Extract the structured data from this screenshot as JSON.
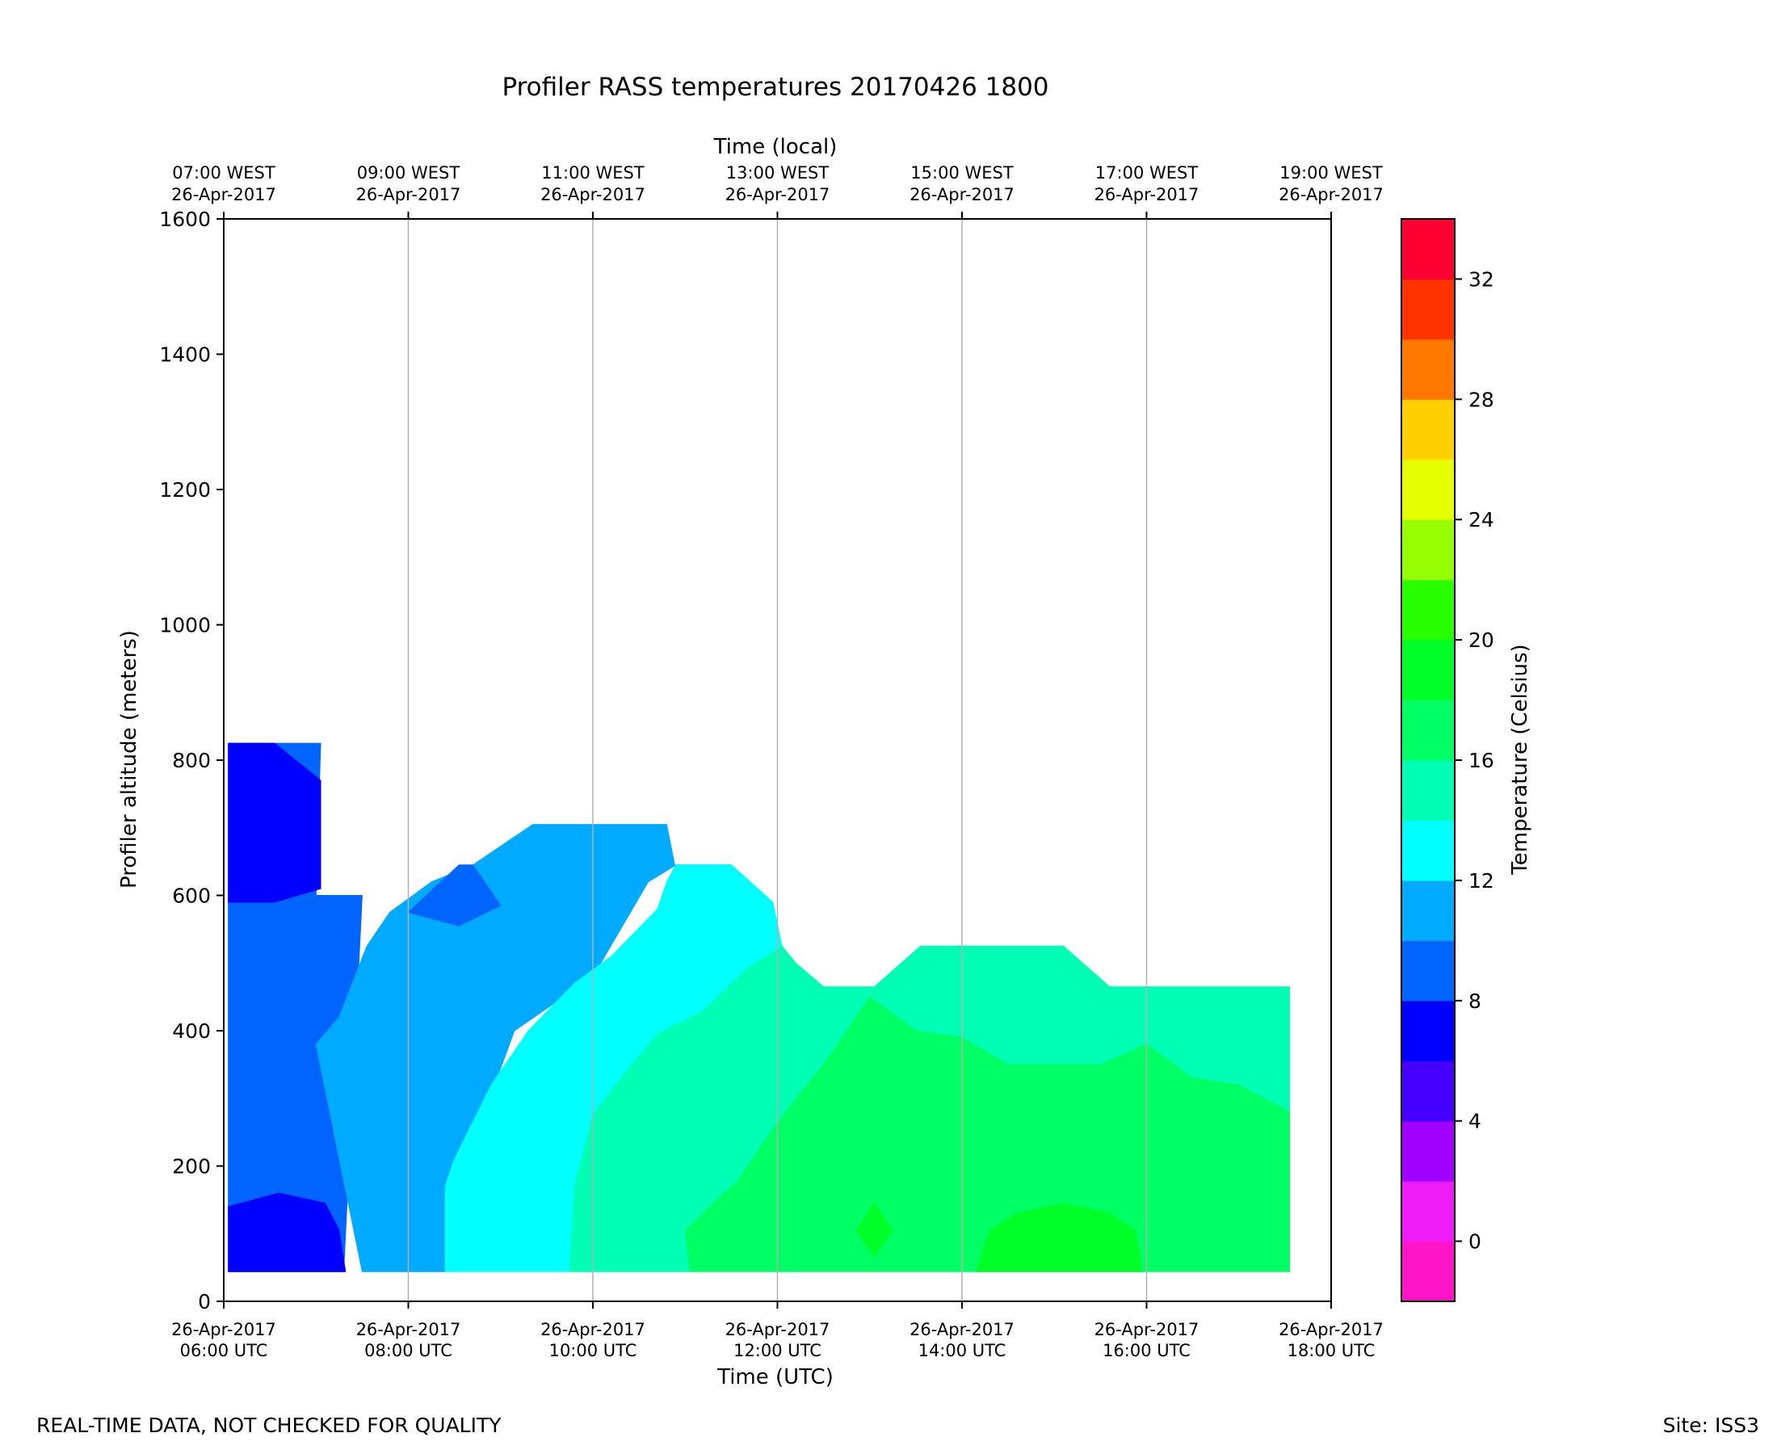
{
  "chart_data": {
    "type": "contourf",
    "title": "Profiler RASS temperatures 20170426 1800",
    "xlabel": "Time (UTC)",
    "xlabel_top": "Time (local)",
    "ylabel": "Profiler altitude (meters)",
    "x_units": "hours UTC",
    "xlim": [
      6,
      18
    ],
    "ylim": [
      0,
      1600
    ],
    "grid": "vertical",
    "x_ticks": [
      6,
      8,
      10,
      12,
      14,
      16,
      18
    ],
    "y_ticks": [
      0,
      200,
      400,
      600,
      800,
      1000,
      1200,
      1400,
      1600
    ],
    "x_tick_labels": [
      [
        "26-Apr-2017",
        "06:00 UTC"
      ],
      [
        "26-Apr-2017",
        "08:00 UTC"
      ],
      [
        "26-Apr-2017",
        "10:00 UTC"
      ],
      [
        "26-Apr-2017",
        "12:00 UTC"
      ],
      [
        "26-Apr-2017",
        "14:00 UTC"
      ],
      [
        "26-Apr-2017",
        "16:00 UTC"
      ],
      [
        "26-Apr-2017",
        "18:00 UTC"
      ]
    ],
    "x_tick_labels_top": [
      [
        "07:00 WEST",
        "26-Apr-2017"
      ],
      [
        "09:00 WEST",
        "26-Apr-2017"
      ],
      [
        "11:00 WEST",
        "26-Apr-2017"
      ],
      [
        "13:00 WEST",
        "26-Apr-2017"
      ],
      [
        "15:00 WEST",
        "26-Apr-2017"
      ],
      [
        "17:00 WEST",
        "26-Apr-2017"
      ],
      [
        "19:00 WEST",
        "26-Apr-2017"
      ]
    ],
    "colorbar": {
      "label": "Temperature (Celsius)",
      "range": [
        -2,
        34
      ],
      "step": 2,
      "tick_values": [
        0,
        4,
        8,
        12,
        16,
        20,
        24,
        28,
        32
      ],
      "colors": [
        "#ff14c8",
        "#f01cf8",
        "#a000ff",
        "#4400ff",
        "#0000ff",
        "#0064ff",
        "#00aaff",
        "#00ffff",
        "#00ffb4",
        "#00ff64",
        "#00ff28",
        "#28ff00",
        "#96ff00",
        "#e6ff00",
        "#ffd000",
        "#ff7800",
        "#ff3300",
        "#ff0033"
      ]
    },
    "regions": [
      {
        "name": "region-8-10C",
        "color": "#0064ff",
        "points": [
          [
            6.05,
            44
          ],
          [
            7.3,
            44
          ],
          [
            7.5,
            600
          ],
          [
            7.0,
            600
          ],
          [
            7.05,
            825
          ],
          [
            6.55,
            825
          ],
          [
            6.05,
            825
          ]
        ]
      },
      {
        "name": "region-10-12C",
        "color": "#00aaff",
        "points": [
          [
            7.5,
            44
          ],
          [
            8.4,
            44
          ],
          [
            8.4,
            165
          ],
          [
            8.8,
            270
          ],
          [
            9.15,
            400
          ],
          [
            10,
            480
          ],
          [
            10.6,
            620
          ],
          [
            10.9,
            645
          ],
          [
            11.5,
            645
          ],
          [
            11.95,
            590
          ],
          [
            12,
            525
          ],
          [
            11.5,
            430
          ],
          [
            11.2,
            430
          ],
          [
            10.8,
            705
          ],
          [
            9.8,
            705
          ],
          [
            9.35,
            705
          ],
          [
            8.7,
            645
          ],
          [
            8.25,
            620
          ],
          [
            7.8,
            575
          ],
          [
            7.55,
            525
          ],
          [
            7.25,
            420
          ],
          [
            7.0,
            380
          ]
        ]
      },
      {
        "name": "region-7-8C-top",
        "color": "#0000ff",
        "points": [
          [
            6.05,
            590
          ],
          [
            6.55,
            590
          ],
          [
            7.05,
            610
          ],
          [
            7.05,
            770
          ],
          [
            6.55,
            825
          ],
          [
            6.05,
            825
          ]
        ]
      },
      {
        "name": "region-7-8C-bottom",
        "color": "#0000ff",
        "points": [
          [
            6.05,
            44
          ],
          [
            7.32,
            44
          ],
          [
            7.25,
            105
          ],
          [
            7.1,
            145
          ],
          [
            6.6,
            160
          ],
          [
            6.05,
            140
          ]
        ]
      },
      {
        "name": "region-9-10C-blob",
        "color": "#0064ff",
        "points": [
          [
            8.0,
            575
          ],
          [
            8.55,
            645
          ],
          [
            8.7,
            645
          ],
          [
            9.0,
            585
          ],
          [
            8.55,
            555
          ]
        ]
      },
      {
        "name": "region-12-14C",
        "color": "#00ffff",
        "points": [
          [
            8.4,
            44
          ],
          [
            9.75,
            44
          ],
          [
            9.8,
            170
          ],
          [
            10,
            275
          ],
          [
            10.3,
            330
          ],
          [
            10.7,
            395
          ],
          [
            11.2,
            430
          ],
          [
            11.65,
            490
          ],
          [
            12.05,
            525
          ],
          [
            11.95,
            590
          ],
          [
            11.5,
            645
          ],
          [
            10.9,
            645
          ],
          [
            10.8,
            620
          ],
          [
            10.7,
            580
          ],
          [
            10.2,
            510
          ],
          [
            9.8,
            470
          ],
          [
            9.3,
            400
          ],
          [
            8.9,
            320
          ],
          [
            8.5,
            210
          ],
          [
            8.4,
            170
          ]
        ]
      },
      {
        "name": "region-14-16C",
        "color": "#00ffb4",
        "points": [
          [
            9.75,
            44
          ],
          [
            11.05,
            44
          ],
          [
            11.0,
            105
          ],
          [
            11.3,
            145
          ],
          [
            11.55,
            175
          ],
          [
            11.9,
            245
          ],
          [
            12.2,
            300
          ],
          [
            12.5,
            350
          ],
          [
            13.0,
            450
          ],
          [
            13.5,
            400
          ],
          [
            14.0,
            390
          ],
          [
            14.5,
            350
          ],
          [
            15.0,
            350
          ],
          [
            15.5,
            350
          ],
          [
            16.0,
            380
          ],
          [
            16.5,
            330
          ],
          [
            17.0,
            320
          ],
          [
            17.55,
            280
          ],
          [
            17.55,
            465
          ],
          [
            16.5,
            465
          ],
          [
            15.6,
            465
          ],
          [
            15.1,
            525
          ],
          [
            14.0,
            525
          ],
          [
            13.55,
            525
          ],
          [
            13.05,
            465
          ],
          [
            12.5,
            465
          ],
          [
            12.2,
            500
          ],
          [
            12.05,
            525
          ],
          [
            11.65,
            490
          ],
          [
            11.2,
            430
          ],
          [
            10.7,
            395
          ],
          [
            10.3,
            330
          ],
          [
            10,
            275
          ],
          [
            9.8,
            170
          ]
        ]
      },
      {
        "name": "region-16-18C",
        "color": "#00ff64",
        "points": [
          [
            11.05,
            44
          ],
          [
            17.55,
            44
          ],
          [
            17.55,
            280
          ],
          [
            17.0,
            320
          ],
          [
            16.5,
            330
          ],
          [
            16.0,
            380
          ],
          [
            15.5,
            350
          ],
          [
            15.0,
            350
          ],
          [
            14.5,
            350
          ],
          [
            14.0,
            390
          ],
          [
            13.5,
            400
          ],
          [
            13.0,
            450
          ],
          [
            12.5,
            350
          ],
          [
            12.2,
            300
          ],
          [
            11.9,
            245
          ],
          [
            11.55,
            175
          ],
          [
            11.3,
            145
          ],
          [
            11.0,
            105
          ]
        ]
      },
      {
        "name": "region-18-20C-small",
        "color": "#00ff28",
        "points": [
          [
            12.85,
            105
          ],
          [
            13.05,
            145
          ],
          [
            13.25,
            105
          ],
          [
            13.05,
            65
          ]
        ]
      },
      {
        "name": "region-18-20C-right",
        "color": "#00ff28",
        "points": [
          [
            14.15,
            44
          ],
          [
            15.95,
            44
          ],
          [
            15.88,
            105
          ],
          [
            15.6,
            130
          ],
          [
            15.1,
            145
          ],
          [
            14.6,
            130
          ],
          [
            14.3,
            105
          ]
        ]
      }
    ]
  },
  "footer": {
    "left": "REAL-TIME DATA, NOT CHECKED FOR QUALITY",
    "right": "Site: ISS3"
  }
}
